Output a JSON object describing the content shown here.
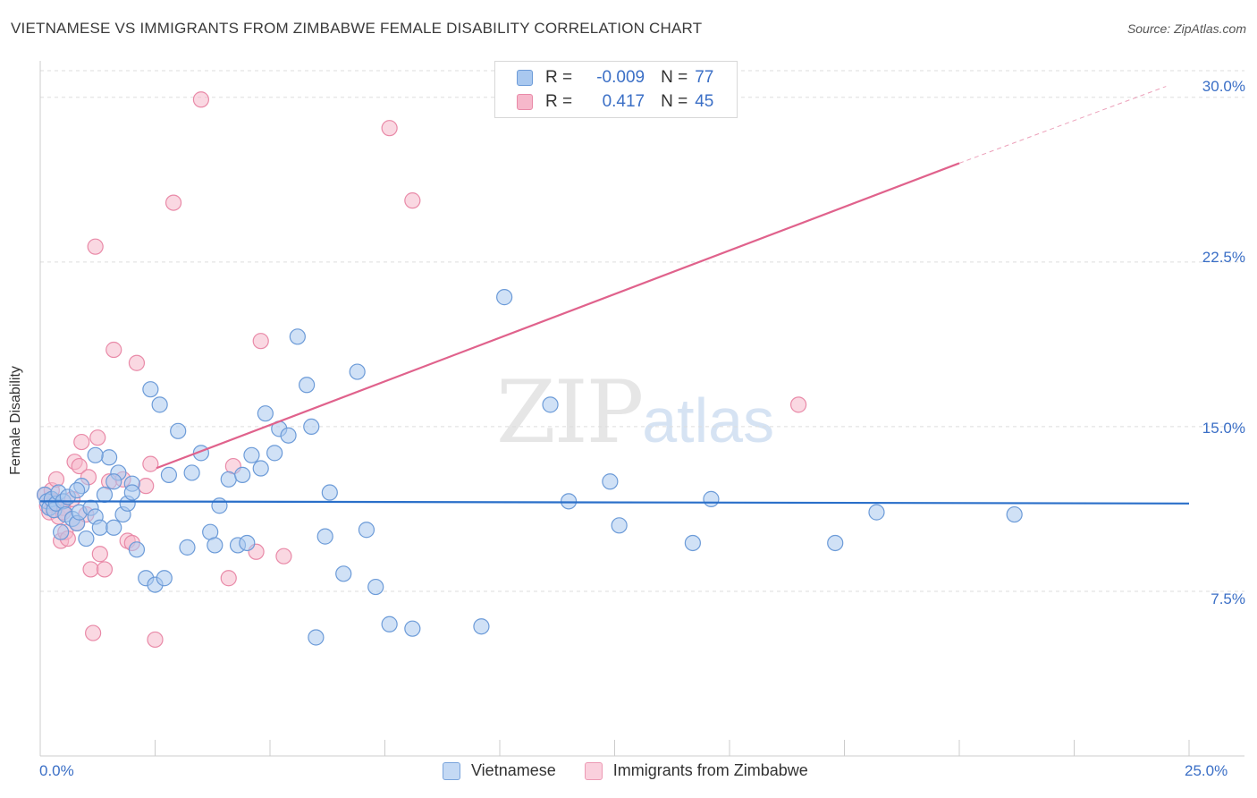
{
  "header": {
    "title": "VIETNAMESE VS IMMIGRANTS FROM ZIMBABWE FEMALE DISABILITY CORRELATION CHART",
    "source": "Source: ZipAtlas.com"
  },
  "watermark": {
    "zip": "ZIP",
    "atlas": "atlas"
  },
  "legend": {
    "r_label": "R =",
    "n_label": "N =",
    "vietnamese": {
      "r": "-0.009",
      "n": "77"
    },
    "zimbabwe": {
      "r": "0.417",
      "n": "45"
    }
  },
  "colors": {
    "blue_fill": "#a9c8ef",
    "blue_stroke": "#6c9bd8",
    "blue_line": "#2a6fc9",
    "pink_fill": "#f6b8cb",
    "pink_stroke": "#e98aa8",
    "pink_line": "#e0628c",
    "tick_text": "#3b6fc6",
    "grid": "#dddddd"
  },
  "chart_data": {
    "type": "scatter",
    "title": "VIETNAMESE VS IMMIGRANTS FROM ZIMBABWE FEMALE DISABILITY CORRELATION CHART",
    "xlabel": "",
    "ylabel": "Female Disability",
    "xlim": [
      0,
      25
    ],
    "ylim": [
      0,
      31.5
    ],
    "x_tick_labels": [
      "0.0%",
      "25.0%"
    ],
    "y_ticks": [
      7.5,
      15.0,
      22.5,
      30.0
    ],
    "y_tick_labels": [
      "7.5%",
      "15.0%",
      "22.5%",
      "30.0%"
    ],
    "legend_position": "top-center",
    "series": [
      {
        "name": "Vietnamese",
        "r": -0.009,
        "n": 77,
        "trend": {
          "x": [
            0,
            25
          ],
          "y": [
            11.6,
            11.5
          ]
        },
        "points": [
          [
            0.1,
            11.9
          ],
          [
            0.15,
            11.6
          ],
          [
            0.2,
            11.3
          ],
          [
            0.25,
            11.7
          ],
          [
            0.3,
            11.2
          ],
          [
            0.35,
            11.5
          ],
          [
            0.4,
            12.0
          ],
          [
            0.45,
            10.2
          ],
          [
            0.5,
            11.6
          ],
          [
            0.55,
            11.0
          ],
          [
            0.6,
            11.8
          ],
          [
            0.7,
            10.8
          ],
          [
            0.8,
            10.6
          ],
          [
            0.85,
            11.1
          ],
          [
            0.9,
            12.3
          ],
          [
            1.0,
            9.9
          ],
          [
            1.1,
            11.3
          ],
          [
            1.2,
            10.9
          ],
          [
            1.3,
            10.4
          ],
          [
            1.4,
            11.9
          ],
          [
            1.5,
            13.6
          ],
          [
            1.6,
            10.4
          ],
          [
            1.7,
            12.9
          ],
          [
            1.8,
            11.0
          ],
          [
            1.9,
            11.5
          ],
          [
            2.0,
            12.4
          ],
          [
            2.1,
            9.4
          ],
          [
            2.3,
            8.1
          ],
          [
            2.4,
            16.7
          ],
          [
            2.6,
            16.0
          ],
          [
            2.8,
            12.8
          ],
          [
            3.0,
            14.8
          ],
          [
            3.3,
            12.9
          ],
          [
            3.5,
            13.8
          ],
          [
            3.7,
            10.2
          ],
          [
            3.9,
            11.4
          ],
          [
            4.1,
            12.6
          ],
          [
            4.3,
            9.6
          ],
          [
            4.4,
            12.8
          ],
          [
            4.6,
            13.7
          ],
          [
            4.8,
            13.1
          ],
          [
            4.9,
            15.6
          ],
          [
            5.1,
            13.8
          ],
          [
            5.2,
            14.9
          ],
          [
            5.4,
            14.6
          ],
          [
            5.6,
            19.1
          ],
          [
            5.8,
            16.9
          ],
          [
            6.0,
            5.4
          ],
          [
            6.3,
            12.0
          ],
          [
            6.6,
            8.3
          ],
          [
            6.9,
            17.5
          ],
          [
            7.1,
            10.3
          ],
          [
            7.3,
            7.7
          ],
          [
            7.6,
            6.0
          ],
          [
            8.1,
            5.8
          ],
          [
            9.6,
            5.9
          ],
          [
            10.1,
            20.9
          ],
          [
            11.1,
            16.0
          ],
          [
            11.5,
            11.6
          ],
          [
            12.4,
            12.5
          ],
          [
            12.6,
            10.5
          ],
          [
            14.2,
            9.7
          ],
          [
            14.6,
            11.7
          ],
          [
            17.3,
            9.7
          ],
          [
            18.2,
            11.1
          ],
          [
            21.2,
            11.0
          ],
          [
            2.5,
            7.8
          ],
          [
            1.2,
            13.7
          ],
          [
            4.5,
            9.7
          ],
          [
            6.2,
            10.0
          ],
          [
            2.7,
            8.1
          ],
          [
            3.2,
            9.5
          ],
          [
            5.9,
            15.0
          ],
          [
            3.8,
            9.6
          ],
          [
            2.0,
            12.0
          ],
          [
            1.6,
            12.5
          ],
          [
            0.8,
            12.1
          ]
        ]
      },
      {
        "name": "Immigrants from Zimbabwe",
        "r": 0.417,
        "n": 45,
        "trend": {
          "x": [
            0,
            20
          ],
          "y": [
            11.1,
            27.0
          ]
        },
        "trend_dashed": {
          "x": [
            20,
            24.5
          ],
          "y": [
            27.0,
            30.5
          ]
        },
        "points": [
          [
            0.1,
            11.9
          ],
          [
            0.15,
            11.4
          ],
          [
            0.2,
            11.1
          ],
          [
            0.25,
            12.1
          ],
          [
            0.3,
            11.6
          ],
          [
            0.35,
            12.6
          ],
          [
            0.4,
            10.9
          ],
          [
            0.45,
            9.8
          ],
          [
            0.5,
            11.3
          ],
          [
            0.55,
            10.2
          ],
          [
            0.6,
            9.9
          ],
          [
            0.7,
            11.7
          ],
          [
            0.75,
            13.4
          ],
          [
            0.8,
            10.6
          ],
          [
            0.85,
            13.2
          ],
          [
            0.9,
            14.3
          ],
          [
            1.0,
            11.0
          ],
          [
            1.05,
            12.7
          ],
          [
            1.1,
            8.5
          ],
          [
            1.15,
            5.6
          ],
          [
            1.2,
            23.2
          ],
          [
            1.25,
            14.5
          ],
          [
            1.3,
            9.2
          ],
          [
            1.4,
            8.5
          ],
          [
            1.5,
            12.5
          ],
          [
            1.6,
            18.5
          ],
          [
            1.8,
            12.6
          ],
          [
            1.9,
            9.8
          ],
          [
            2.0,
            9.7
          ],
          [
            2.1,
            17.9
          ],
          [
            2.3,
            12.3
          ],
          [
            2.4,
            13.3
          ],
          [
            2.5,
            5.3
          ],
          [
            2.9,
            25.2
          ],
          [
            3.5,
            29.9
          ],
          [
            4.1,
            8.1
          ],
          [
            4.2,
            13.2
          ],
          [
            4.7,
            9.3
          ],
          [
            4.8,
            18.9
          ],
          [
            5.3,
            9.1
          ],
          [
            7.6,
            28.6
          ],
          [
            8.1,
            25.3
          ],
          [
            16.5,
            16.0
          ],
          [
            0.5,
            11.1
          ],
          [
            0.3,
            11.5
          ]
        ]
      }
    ]
  },
  "axes": {
    "x_left": "0.0%",
    "x_right": "25.0%",
    "y_label": "Female Disability",
    "y_ticks": [
      "30.0%",
      "22.5%",
      "15.0%",
      "7.5%"
    ]
  },
  "bottom_legend": {
    "vietnamese": "Vietnamese",
    "zimbabwe": "Immigrants from Zimbabwe"
  }
}
